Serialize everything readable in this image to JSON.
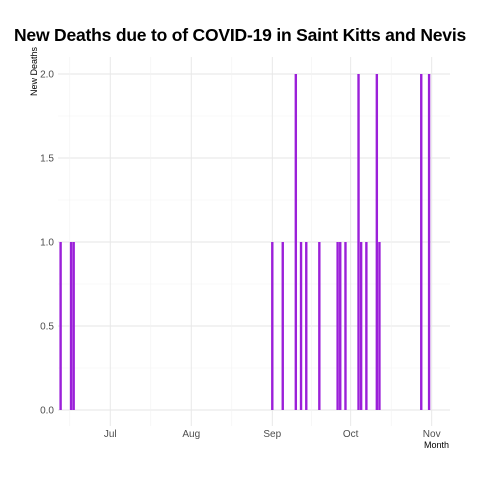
{
  "chart_data": {
    "type": "bar",
    "title": "New Deaths due to of COVID-19 in Saint Kitts and Nevis",
    "xlabel": "Month",
    "ylabel": "New Deaths",
    "ylim": [
      0,
      2
    ],
    "y_ticks": [
      "0.0",
      "0.5",
      "1.0",
      "1.5",
      "2.0"
    ],
    "x_ticks": [
      {
        "label": "Jul",
        "date": "2021-07-01"
      },
      {
        "label": "Aug",
        "date": "2021-08-01"
      },
      {
        "label": "Sep",
        "date": "2021-09-01"
      },
      {
        "label": "Oct",
        "date": "2021-10-01"
      },
      {
        "label": "Nov",
        "date": "2021-11-01"
      }
    ],
    "x_range": [
      "2021-06-11",
      "2021-11-08"
    ],
    "grid": true,
    "bar_color": "#9b20d9",
    "points": [
      {
        "date": "2021-06-12",
        "value": 1
      },
      {
        "date": "2021-06-16",
        "value": 1
      },
      {
        "date": "2021-06-17",
        "value": 1
      },
      {
        "date": "2021-09-01",
        "value": 1
      },
      {
        "date": "2021-09-05",
        "value": 1
      },
      {
        "date": "2021-09-10",
        "value": 2
      },
      {
        "date": "2021-09-12",
        "value": 1
      },
      {
        "date": "2021-09-14",
        "value": 1
      },
      {
        "date": "2021-09-19",
        "value": 1
      },
      {
        "date": "2021-09-26",
        "value": 1
      },
      {
        "date": "2021-09-27",
        "value": 1
      },
      {
        "date": "2021-09-29",
        "value": 1
      },
      {
        "date": "2021-10-04",
        "value": 2
      },
      {
        "date": "2021-10-05",
        "value": 1
      },
      {
        "date": "2021-10-07",
        "value": 1
      },
      {
        "date": "2021-10-11",
        "value": 2
      },
      {
        "date": "2021-10-12",
        "value": 1
      },
      {
        "date": "2021-10-28",
        "value": 2
      },
      {
        "date": "2021-10-31",
        "value": 2
      }
    ]
  }
}
